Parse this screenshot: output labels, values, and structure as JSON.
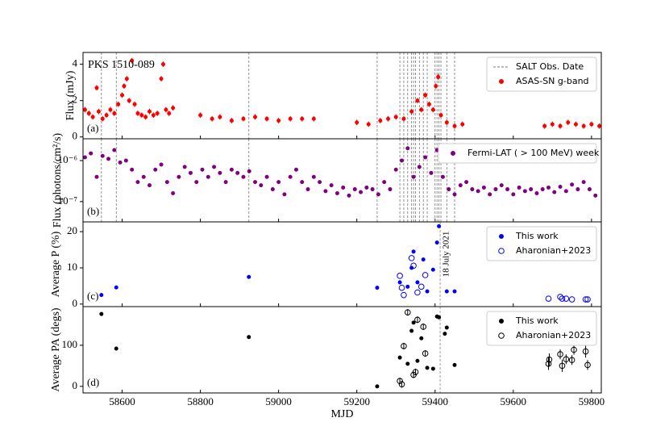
{
  "chart_data": [
    {
      "type": "scatter",
      "title": "PKS 1510-089",
      "label": "(a)",
      "ylabel": "Flux (mJy)",
      "ylim": [
        -0.1,
        4.65
      ],
      "yticks": [
        0,
        2,
        4
      ],
      "vlines": {
        "name": "SALT Obs. Date",
        "color": "#777777",
        "x": [
          58547,
          58585,
          58924,
          59252,
          59310,
          59320,
          59330,
          59340,
          59345,
          59350,
          59360,
          59370,
          59380,
          59400,
          59405,
          59410,
          59415,
          59430,
          59450
        ]
      },
      "series": [
        {
          "name": "ASAS-SN g-band",
          "color": "#ff0000",
          "marker": "filled",
          "x": [
            58505,
            58515,
            58525,
            58535,
            58540,
            58550,
            58560,
            58570,
            58580,
            58590,
            58600,
            58605,
            58612,
            58618,
            58625,
            58632,
            58640,
            58650,
            58660,
            58670,
            58680,
            58690,
            58700,
            58705,
            58712,
            58720,
            58730,
            58800,
            58830,
            58850,
            58880,
            58910,
            58940,
            58970,
            59000,
            59030,
            59060,
            59090,
            59200,
            59230,
            59260,
            59280,
            59300,
            59320,
            59340,
            59355,
            59365,
            59375,
            59385,
            59395,
            59402,
            59408,
            59415,
            59430,
            59450,
            59470,
            59680,
            59700,
            59720,
            59740,
            59760,
            59780,
            59800,
            59820
          ],
          "values": [
            1.5,
            1.3,
            1.1,
            2.7,
            1.4,
            1.0,
            1.2,
            1.5,
            1.3,
            1.8,
            2.3,
            2.8,
            3.2,
            2.0,
            4.2,
            1.8,
            1.3,
            1.2,
            1.1,
            1.4,
            1.2,
            1.3,
            3.2,
            4.0,
            1.5,
            1.3,
            1.6,
            1.2,
            1.0,
            1.1,
            0.9,
            1.0,
            1.1,
            1.0,
            0.9,
            1.0,
            1.0,
            1.0,
            0.8,
            0.7,
            0.9,
            1.0,
            1.1,
            1.0,
            1.4,
            2.0,
            1.5,
            2.3,
            1.8,
            1.5,
            2.8,
            3.3,
            1.2,
            0.8,
            0.6,
            0.7,
            0.6,
            0.7,
            0.6,
            0.8,
            0.7,
            0.6,
            0.7,
            0.6
          ],
          "errors": [
            0.15,
            0.15,
            0.15,
            0.15,
            0.15,
            0.15,
            0.15,
            0.15,
            0.15,
            0.15,
            0.15,
            0.15,
            0.15,
            0.15,
            0.15,
            0.15,
            0.15,
            0.15,
            0.15,
            0.15,
            0.15,
            0.15,
            0.15,
            0.15,
            0.15,
            0.15,
            0.15,
            0.15,
            0.15,
            0.15,
            0.15,
            0.15,
            0.15,
            0.15,
            0.15,
            0.15,
            0.15,
            0.15,
            0.15,
            0.15,
            0.15,
            0.15,
            0.15,
            0.15,
            0.15,
            0.15,
            0.15,
            0.15,
            0.15,
            0.15,
            0.15,
            0.15,
            0.15,
            0.15,
            0.15,
            0.15,
            0.15,
            0.15,
            0.15,
            0.15,
            0.15,
            0.15,
            0.15,
            0.15
          ]
        }
      ]
    },
    {
      "type": "scatter",
      "label": "(b)",
      "ylabel": "Flux (photons/cm²/s)",
      "log": true,
      "ylim": [
        3.2e-08,
        3.4e-06
      ],
      "yticks": [
        {
          "value": 1e-06,
          "label": "10⁻⁶"
        },
        {
          "value": 1e-07,
          "label": "10⁻⁷"
        }
      ],
      "series": [
        {
          "name": "Fermi-LAT ( > 100 MeV) week",
          "color": "#800080",
          "marker": "filled",
          "x": [
            58505,
            58520,
            58535,
            58550,
            58565,
            58580,
            58595,
            58610,
            58625,
            58640,
            58655,
            58670,
            58685,
            58700,
            58715,
            58730,
            58745,
            58760,
            58775,
            58790,
            58805,
            58820,
            58835,
            58850,
            58865,
            58880,
            58895,
            58910,
            58925,
            58940,
            58955,
            58970,
            58985,
            59000,
            59015,
            59030,
            59045,
            59060,
            59075,
            59090,
            59105,
            59120,
            59135,
            59150,
            59165,
            59180,
            59195,
            59210,
            59225,
            59240,
            59255,
            59270,
            59285,
            59300,
            59315,
            59330,
            59345,
            59360,
            59375,
            59390,
            59405,
            59420,
            59435,
            59450,
            59465,
            59480,
            59495,
            59510,
            59525,
            59540,
            59555,
            59570,
            59585,
            59600,
            59615,
            59630,
            59645,
            59660,
            59675,
            59690,
            59705,
            59720,
            59735,
            59750,
            59765,
            59780,
            59795,
            59810
          ],
          "values": [
            1.2e-06,
            1.5e-06,
            4e-07,
            1.3e-06,
            1.1e-06,
            1.8e-06,
            9e-07,
            1e-06,
            6e-07,
            3e-07,
            4e-07,
            2.5e-07,
            6e-07,
            8e-07,
            3e-07,
            1.6e-07,
            4e-07,
            7e-07,
            5e-07,
            3e-07,
            6e-07,
            4e-07,
            7e-07,
            5e-07,
            3e-07,
            6e-07,
            5e-07,
            4e-07,
            5.5e-07,
            3e-07,
            2.5e-07,
            4e-07,
            2e-07,
            3e-07,
            1.5e-07,
            4e-07,
            6e-07,
            3e-07,
            2e-07,
            4e-07,
            3e-07,
            1.8e-07,
            2.5e-07,
            1.6e-07,
            2.2e-07,
            1.4e-07,
            2e-07,
            1.7e-07,
            2.2e-07,
            2e-07,
            1.5e-07,
            3e-07,
            2e-07,
            6e-07,
            1e-06,
            2e-06,
            4e-07,
            7e-07,
            1.2e-06,
            5e-07,
            1.8e-06,
            4e-07,
            2e-07,
            1.5e-07,
            2.5e-07,
            3e-07,
            2e-07,
            1.8e-07,
            2.2e-07,
            1.5e-07,
            2e-07,
            2.5e-07,
            2e-07,
            1.5e-07,
            2.2e-07,
            1.8e-07,
            2e-07,
            1.6e-07,
            2e-07,
            2.2e-07,
            1.7e-07,
            2.3e-07,
            1.8e-07,
            2.6e-07,
            2e-07,
            3e-07,
            2e-07,
            1.4e-07
          ]
        }
      ]
    },
    {
      "type": "scatter",
      "label": "(c)",
      "ylabel": "Average P (%)",
      "ylim": [
        -0.7,
        22.7
      ],
      "yticks": [
        0,
        10,
        20
      ],
      "annotations": [
        {
          "x": 59413,
          "text": "18 July 2021"
        }
      ],
      "series": [
        {
          "name": "This work",
          "color": "#0000ff",
          "marker": "filled",
          "x": [
            58547,
            58585,
            58924,
            59252,
            59310,
            59330,
            59340,
            59345,
            59355,
            59370,
            59380,
            59395,
            59405,
            59410,
            59430,
            59450
          ],
          "values": [
            2.5,
            4.6,
            7.5,
            4.5,
            6,
            4.8,
            10,
            14.5,
            6,
            12.3,
            3.5,
            9.5,
            17,
            21.5,
            3.5,
            3.5
          ]
        },
        {
          "name": "Aharonian+2023",
          "color": "#0000ff",
          "marker": "open",
          "x": [
            59310,
            59315,
            59320,
            59340,
            59345,
            59355,
            59365,
            59375,
            59690,
            59720,
            59725,
            59735,
            59750,
            59785,
            59790
          ],
          "values": [
            7.8,
            4.5,
            2.5,
            12.7,
            10.6,
            3.2,
            4.8,
            8,
            1.5,
            2,
            1.5,
            1.5,
            1.3,
            1.3,
            1.3
          ]
        }
      ]
    },
    {
      "type": "scatter",
      "label": "(d)",
      "ylabel": "Average PA (degs)",
      "xlabel": "MJD",
      "ylim": [
        -16,
        194
      ],
      "yticks": [
        0,
        100
      ],
      "xlim": [
        58500,
        59825
      ],
      "xticks": [
        58600,
        58800,
        59000,
        59200,
        59400,
        59600,
        59800
      ],
      "series": [
        {
          "name": "This work",
          "color": "#000000",
          "marker": "filled",
          "x": [
            58547,
            58585,
            58924,
            59252,
            59310,
            59330,
            59340,
            59345,
            59355,
            59365,
            59380,
            59395,
            59405,
            59410,
            59425,
            59430,
            59450
          ],
          "values": [
            176,
            92,
            120,
            0,
            70,
            55,
            135,
            155,
            62,
            117,
            45,
            43,
            170,
            168,
            128,
            143,
            52
          ]
        },
        {
          "name": "Aharonian+2023",
          "color": "#000000",
          "marker": "open",
          "x": [
            59310,
            59315,
            59330,
            59320,
            59345,
            59350,
            59355,
            59370,
            59375,
            59690,
            59692,
            59720,
            59725,
            59735,
            59755,
            59750,
            59785,
            59790
          ],
          "values": [
            13,
            5,
            180,
            98,
            28,
            35,
            162,
            145,
            80,
            55,
            65,
            78,
            50,
            66,
            89,
            64,
            85,
            52
          ],
          "errors": [
            8,
            8,
            8,
            8,
            8,
            8,
            8,
            8,
            8,
            15,
            15,
            12,
            15,
            12,
            12,
            12,
            15,
            12
          ]
        }
      ]
    }
  ]
}
